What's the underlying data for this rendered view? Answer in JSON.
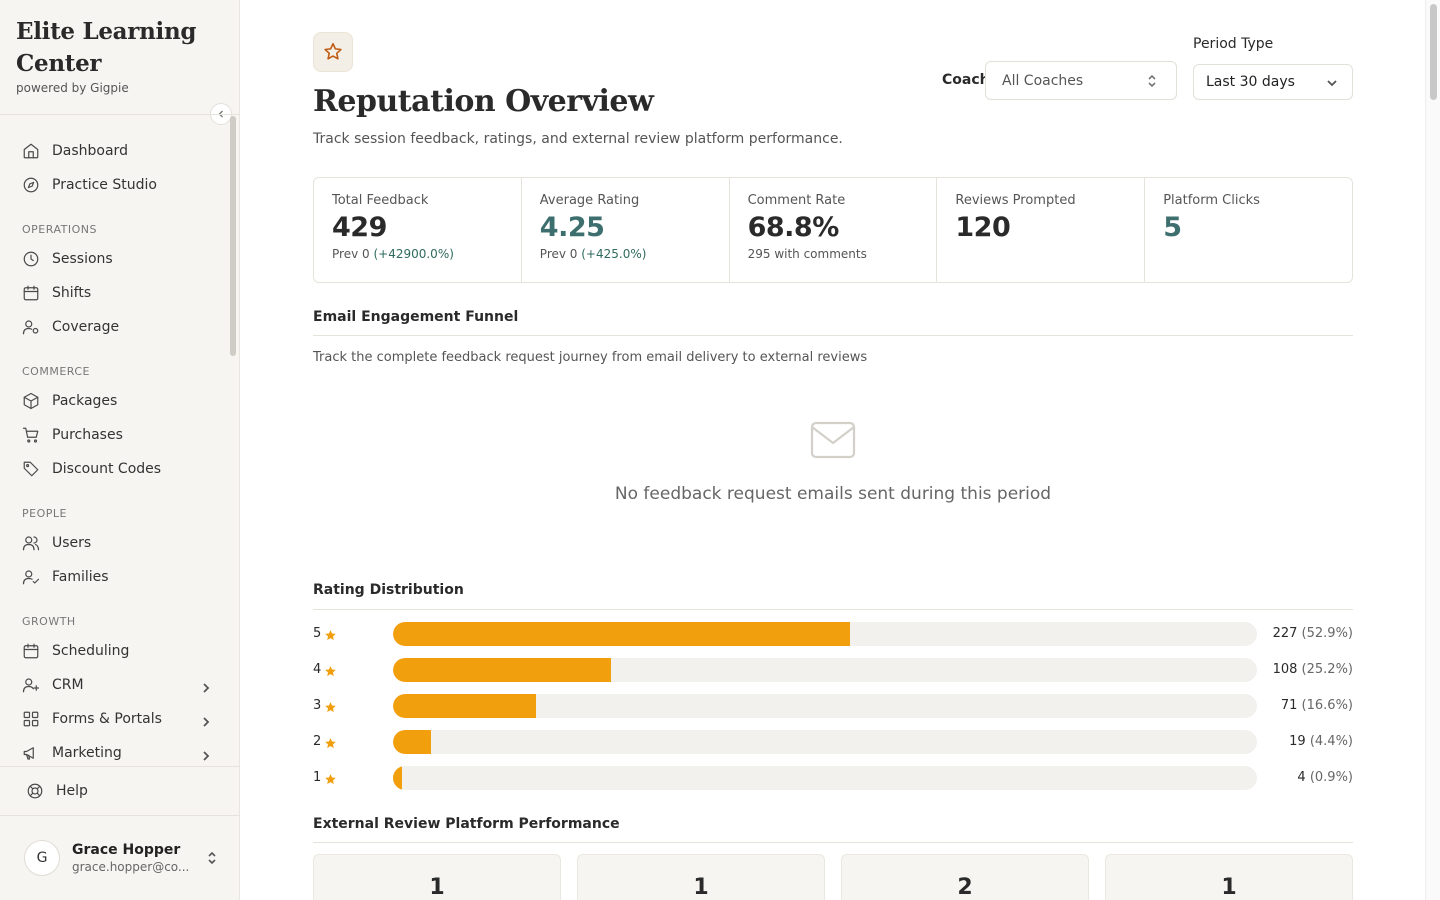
{
  "brand": {
    "title": "Elite Learning Center",
    "subtitle": "powered by Gigpie"
  },
  "nav": {
    "top": [
      {
        "label": "Dashboard",
        "icon": "home-icon"
      },
      {
        "label": "Practice Studio",
        "icon": "compass-icon"
      }
    ],
    "sections": [
      {
        "title": "OPERATIONS",
        "items": [
          {
            "label": "Sessions",
            "icon": "clock-icon"
          },
          {
            "label": "Shifts",
            "icon": "calendar-icon"
          },
          {
            "label": "Coverage",
            "icon": "user-settings-icon"
          }
        ]
      },
      {
        "title": "COMMERCE",
        "items": [
          {
            "label": "Packages",
            "icon": "box-icon"
          },
          {
            "label": "Purchases",
            "icon": "cart-icon"
          },
          {
            "label": "Discount Codes",
            "icon": "tag-icon"
          }
        ]
      },
      {
        "title": "PEOPLE",
        "items": [
          {
            "label": "Users",
            "icon": "users-icon"
          },
          {
            "label": "Families",
            "icon": "user-check-icon"
          }
        ]
      },
      {
        "title": "GROWTH",
        "items": [
          {
            "label": "Scheduling",
            "icon": "calendar-icon"
          },
          {
            "label": "CRM",
            "icon": "user-plus-icon"
          },
          {
            "label": "Forms & Portals",
            "icon": "grid-icon"
          },
          {
            "label": "Marketing",
            "icon": "megaphone-icon"
          }
        ]
      }
    ],
    "help": "Help"
  },
  "user": {
    "initial": "G",
    "name": "Grace Hopper",
    "email": "grace.hopper@co..."
  },
  "page": {
    "title": "Reputation Overview",
    "description": "Track session feedback, ratings, and external review platform performance."
  },
  "filters": {
    "coach_label": "Coach",
    "coach_value": "All Coaches",
    "period_label": "Period Type",
    "period_value": "Last 30 days"
  },
  "stats": [
    {
      "label": "Total Feedback",
      "value": "429",
      "sub_prefix": "Prev 0 ",
      "sub_change": "(+42900.0%)"
    },
    {
      "label": "Average Rating",
      "value": "4.25",
      "sub_prefix": "Prev 0 ",
      "sub_change": "(+425.0%)"
    },
    {
      "label": "Comment Rate",
      "value": "68.8%",
      "sub_prefix": "295 with comments",
      "sub_change": ""
    },
    {
      "label": "Reviews Prompted",
      "value": "120",
      "sub_prefix": "",
      "sub_change": ""
    },
    {
      "label": "Platform Clicks",
      "value": "5",
      "sub_prefix": "",
      "sub_change": ""
    }
  ],
  "funnel": {
    "title": "Email Engagement Funnel",
    "description": "Track the complete feedback request journey from email delivery to external reviews",
    "empty_text": "No feedback request emails sent during this period"
  },
  "rating_distribution": {
    "title": "Rating Distribution",
    "rows": [
      {
        "stars": "5",
        "count": "227",
        "pct_label": "(52.9%)",
        "fraction": 0.529
      },
      {
        "stars": "4",
        "count": "108",
        "pct_label": "(25.2%)",
        "fraction": 0.252
      },
      {
        "stars": "3",
        "count": "71",
        "pct_label": "(16.6%)",
        "fraction": 0.166
      },
      {
        "stars": "2",
        "count": "19",
        "pct_label": "(4.4%)",
        "fraction": 0.044
      },
      {
        "stars": "1",
        "count": "4",
        "pct_label": "(0.9%)",
        "fraction": 0.009
      }
    ]
  },
  "platforms": {
    "title": "External Review Platform Performance",
    "values": [
      "1",
      "1",
      "2",
      "1"
    ]
  },
  "colors": {
    "accent": "#f29f0d",
    "teal": "#3e6f6f",
    "icon_brand": "#c15b12"
  }
}
